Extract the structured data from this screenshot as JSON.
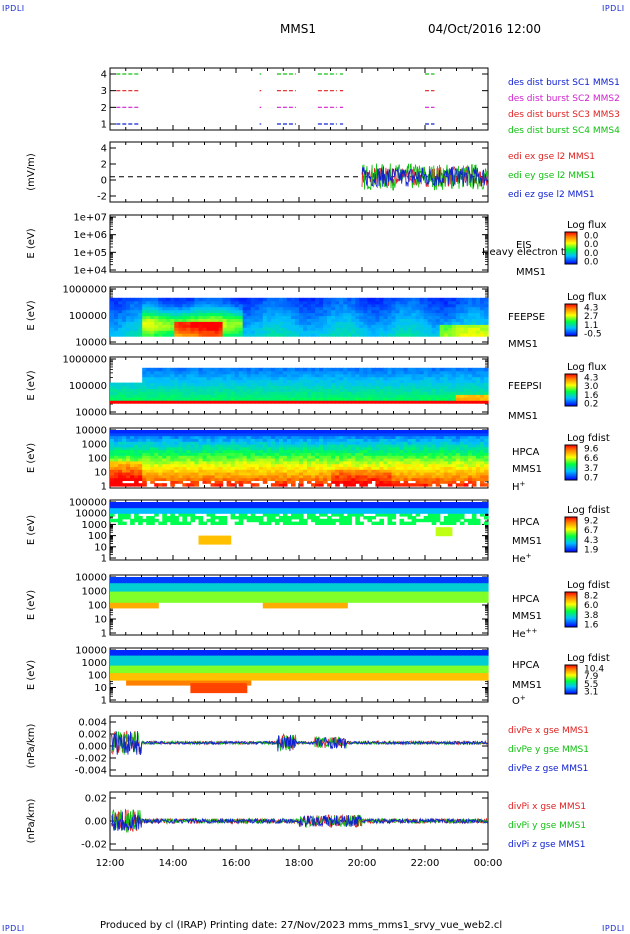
{
  "corners": {
    "tl": "IPDLI",
    "tr": "IPDLI",
    "bl": "IPDLI",
    "br": "IPDLI"
  },
  "header": {
    "spacecraft": "MMS1",
    "datetime": "04/Oct/2016 12:00"
  },
  "footer": {
    "text": "Produced by cl (IRAP)   Printing date: 27/Nov/2023   mms_mms1_srvy_vue_web2.cl"
  },
  "colors": {
    "red": "#e02020",
    "green": "#10c010",
    "magenta": "#d020d0",
    "blue": "#1020d0"
  },
  "chart_data": [
    {
      "type": "line",
      "id": "burst",
      "ylabel": "",
      "yticks": [
        "1",
        "2",
        "3",
        "4"
      ],
      "series": [
        {
          "name": "des dist burst SC1 MMS1",
          "color": "blue",
          "level": 1
        },
        {
          "name": "des dist burst SC2 MMS2",
          "color": "magenta",
          "level": 2
        },
        {
          "name": "des dist burst SC3 MMS3",
          "color": "red",
          "level": 3
        },
        {
          "name": "des dist burst SC4 MMS4",
          "color": "green",
          "level": 4
        }
      ],
      "segments_hours": [
        [
          12.2,
          12.9
        ],
        [
          16.75,
          16.8
        ],
        [
          17.3,
          17.9
        ],
        [
          18.6,
          19.2
        ],
        [
          19.3,
          19.4
        ],
        [
          22.0,
          22.3
        ]
      ]
    },
    {
      "type": "line",
      "id": "edi",
      "ylabel": "(mV/m)",
      "yticks": [
        "-2",
        "0",
        "2",
        "4"
      ],
      "ylim": [
        -3,
        4.5
      ],
      "x_start_hours": 20.0,
      "series": [
        {
          "name": "edi ex gse l2 MMS1",
          "color": "red"
        },
        {
          "name": "edi ey gse l2 MMS1",
          "color": "green"
        },
        {
          "name": "edi ez gse l2 MMS1",
          "color": "blue"
        }
      ]
    },
    {
      "type": "heatmap",
      "id": "eis",
      "ylabel": "E (eV)",
      "yticks": [
        "1e+04",
        "1e+05",
        "1e+06",
        "1e+07"
      ],
      "label_lines": [
        "EIS",
        "MMS1"
      ],
      "overlay_text": "Heavy electron top",
      "cbar_title": "Log flux",
      "cbar_ticks": [
        "0.0",
        "0.0",
        "0.0",
        "0.0"
      ]
    },
    {
      "type": "heatmap",
      "id": "feepse",
      "ylabel": "E (eV)",
      "yticks": [
        "10000",
        "100000",
        "1000000"
      ],
      "label_lines": [
        "FEEPSE",
        "MMS1"
      ],
      "cbar_title": "Log flux",
      "cbar_ticks": [
        "4.3",
        "2.7",
        "1.1",
        "-0.5"
      ]
    },
    {
      "type": "heatmap",
      "id": "feepsi",
      "ylabel": "E (eV)",
      "yticks": [
        "10000",
        "100000",
        "1000000"
      ],
      "label_lines": [
        "FEEPSI",
        "MMS1"
      ],
      "cbar_title": "Log flux",
      "cbar_ticks": [
        "4.3",
        "3.0",
        "1.6",
        "0.2"
      ]
    },
    {
      "type": "heatmap",
      "id": "hpca_h",
      "ylabel": "E (eV)",
      "yticks": [
        "1",
        "10",
        "100",
        "1000",
        "10000"
      ],
      "label_lines": [
        "HPCA",
        "MMS1",
        "H+"
      ],
      "cbar_title": "Log fdist",
      "cbar_ticks": [
        "9.6",
        "6.6",
        "3.7",
        "0.7"
      ]
    },
    {
      "type": "heatmap",
      "id": "hpca_he",
      "ylabel": "E (eV)",
      "yticks": [
        "1",
        "10",
        "100",
        "1000",
        "10000",
        "100000"
      ],
      "label_lines": [
        "HPCA",
        "MMS1",
        "He+"
      ],
      "cbar_title": "Log fdist",
      "cbar_ticks": [
        "9.2",
        "6.7",
        "4.3",
        "1.9"
      ]
    },
    {
      "type": "heatmap",
      "id": "hpca_hepp",
      "ylabel": "E (eV)",
      "yticks": [
        "1",
        "10",
        "100",
        "1000",
        "10000"
      ],
      "label_lines": [
        "HPCA",
        "MMS1",
        "He++"
      ],
      "cbar_title": "Log fdist",
      "cbar_ticks": [
        "8.2",
        "6.0",
        "3.8",
        "1.6"
      ]
    },
    {
      "type": "heatmap",
      "id": "hpca_o",
      "ylabel": "E (eV)",
      "yticks": [
        "1",
        "10",
        "100",
        "1000",
        "10000"
      ],
      "label_lines": [
        "HPCA",
        "MMS1",
        "O+"
      ],
      "cbar_title": "Log fdist",
      "cbar_ticks": [
        "10.4",
        "7.9",
        "5.5",
        "3.1"
      ]
    },
    {
      "type": "line",
      "id": "divpe",
      "ylabel": "(nPa/km)",
      "yticks": [
        "-0.004",
        "-0.002",
        "0.000",
        "0.002",
        "0.004"
      ],
      "ylim": [
        -0.0055,
        0.0042
      ],
      "series": [
        {
          "name": "divPe x gse MMS1",
          "color": "red"
        },
        {
          "name": "divPe y gse MMS1",
          "color": "green"
        },
        {
          "name": "divPe z gse MMS1",
          "color": "blue"
        }
      ]
    },
    {
      "type": "line",
      "id": "divpi",
      "ylabel": "(nPa/km)",
      "yticks": [
        "-0.02",
        "0.00",
        "0.02"
      ],
      "ylim": [
        -0.03,
        0.03
      ],
      "series": [
        {
          "name": "divPi x gse MMS1",
          "color": "red"
        },
        {
          "name": "divPi y gse MMS1",
          "color": "green"
        },
        {
          "name": "divPi z gse MMS1",
          "color": "blue"
        }
      ]
    }
  ],
  "x_axis": {
    "ticks": [
      "12:00",
      "14:00",
      "16:00",
      "18:00",
      "20:00",
      "22:00",
      "00:00"
    ],
    "range_hours": [
      12,
      24
    ]
  }
}
